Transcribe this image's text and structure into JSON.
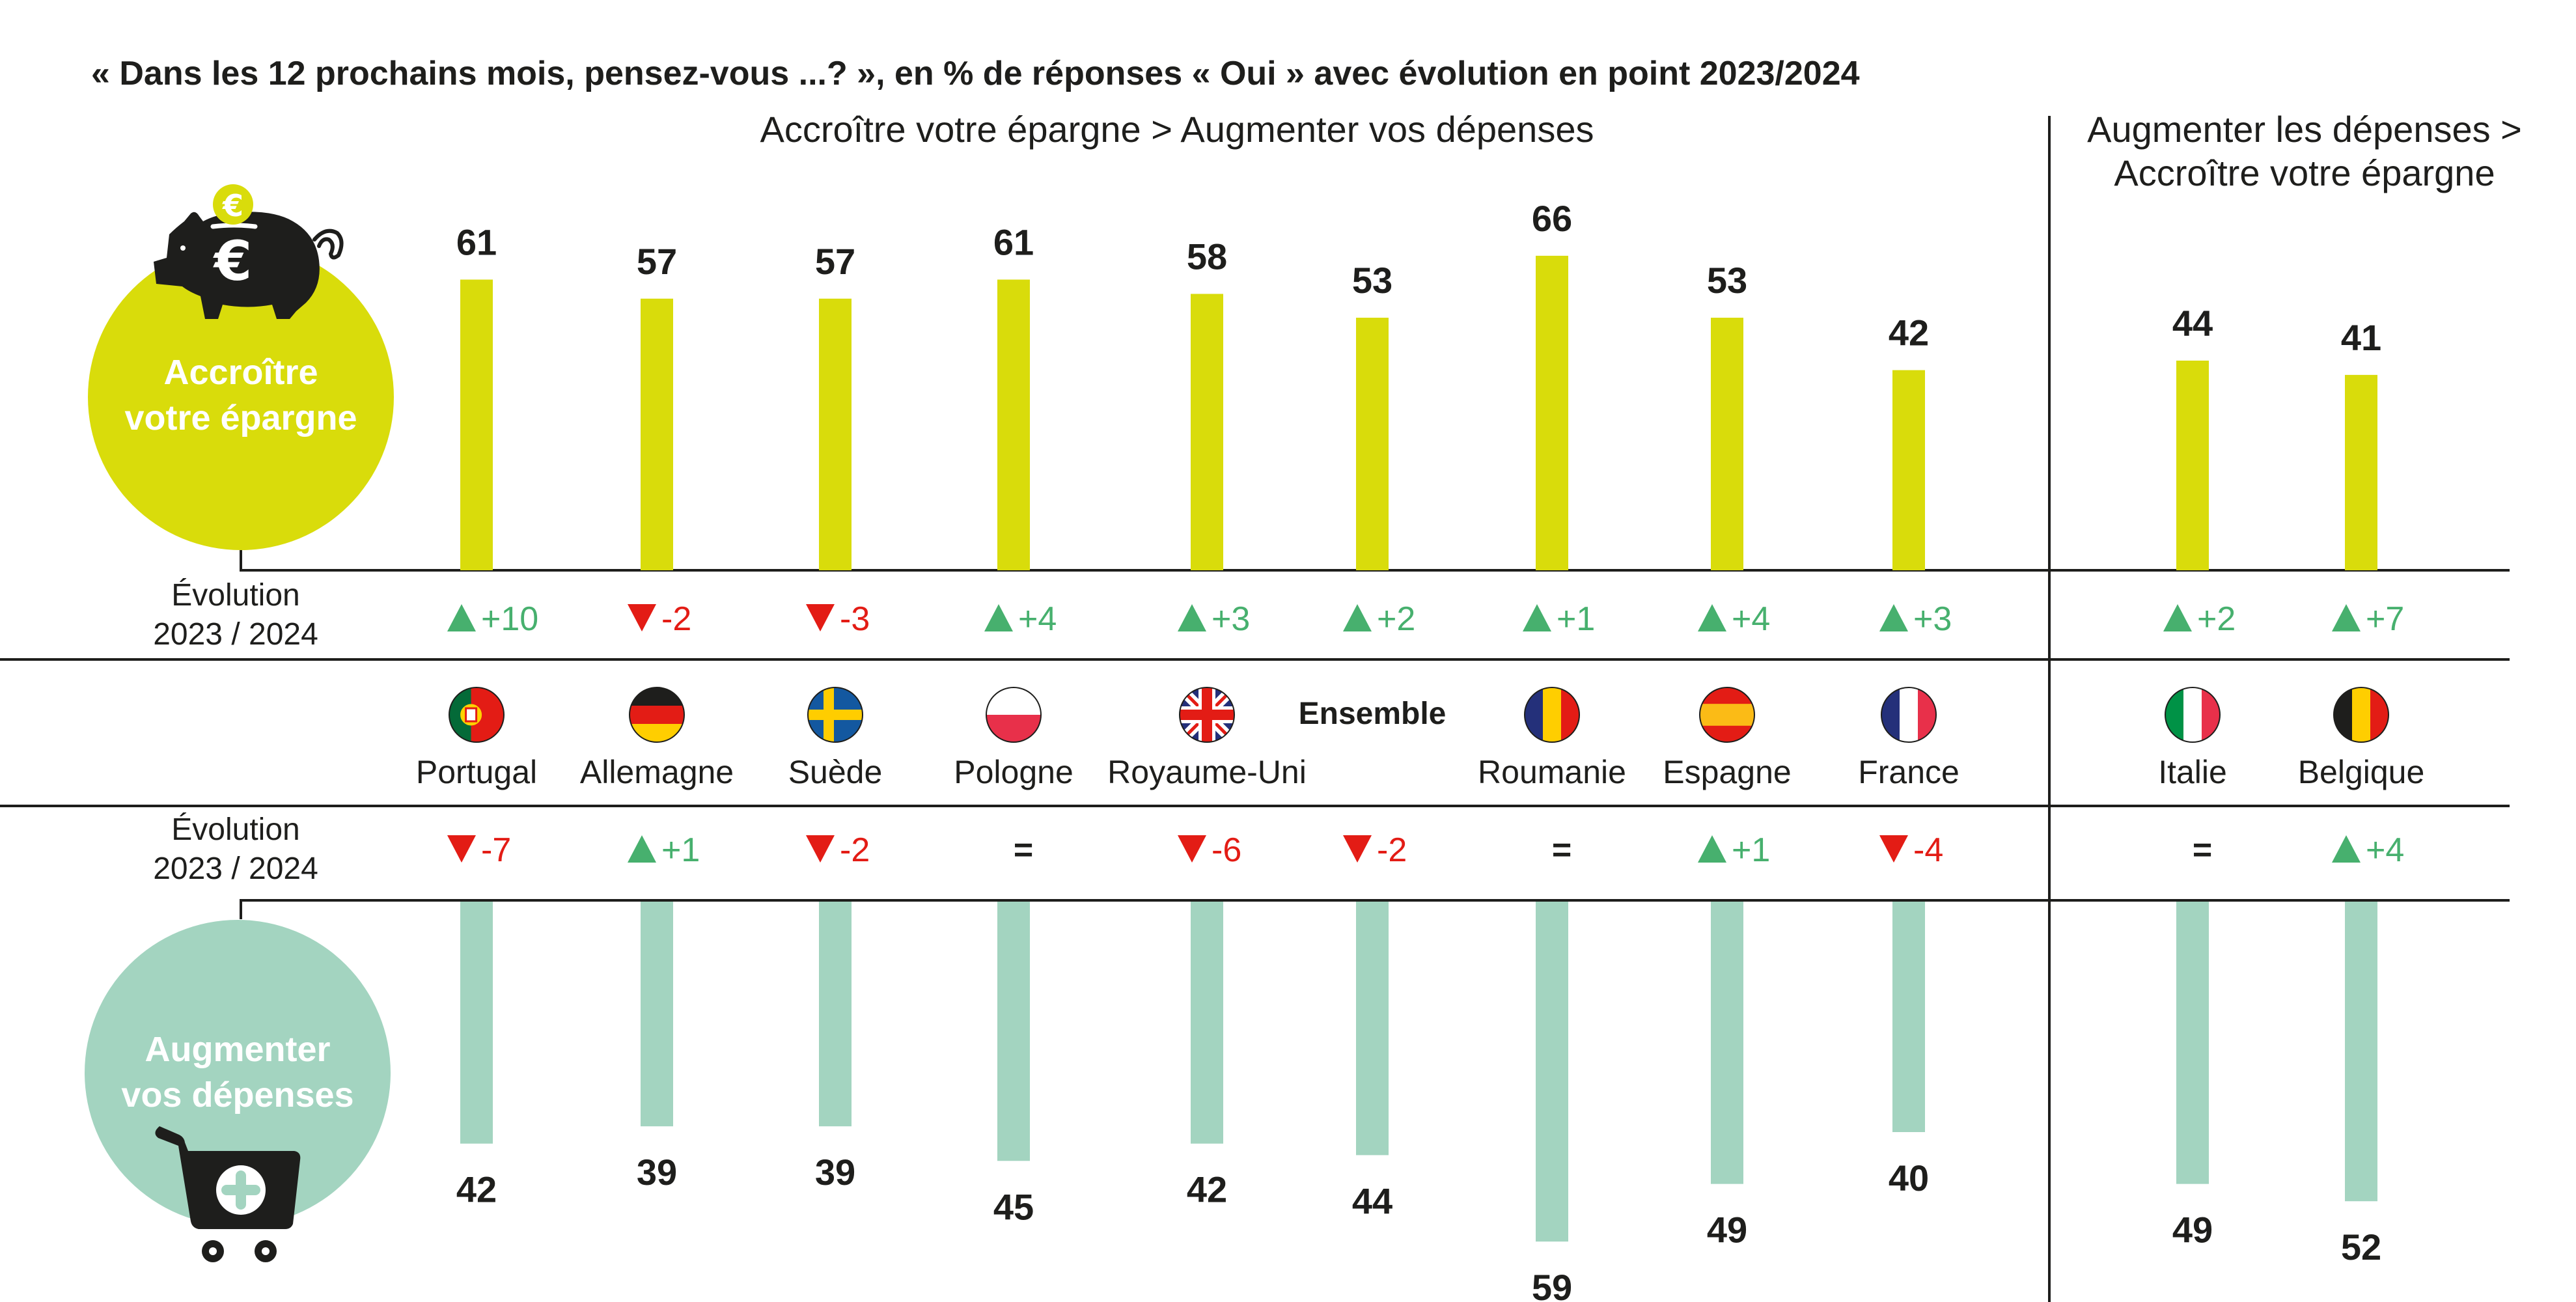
{
  "title": "« Dans les 12 prochains mois, pensez-vous ...? », en % de réponses « Oui » avec évolution en point 2023/2024",
  "group_headers": {
    "left": "Accroître votre épargne > Augmenter vos dépenses",
    "right_line1": "Augmenter les dépenses >",
    "right_line2": "Accroître votre épargne"
  },
  "circles": {
    "savings_line1": "Accroître",
    "savings_line2": "votre épargne",
    "spending_line1": "Augmenter",
    "spending_line2": "vos dépenses"
  },
  "icons": {
    "savings": "piggy-bank-euro-icon",
    "spending": "shopping-cart-plus-icon"
  },
  "evolution_label": {
    "line1": "Évolution",
    "line2": "2023 / 2024"
  },
  "colors": {
    "savings_bar": "#d9dc0b",
    "spending_bar": "#a3d4c0",
    "up": "#47b06e",
    "down": "#e31c15",
    "text": "#1e1e1c"
  },
  "chart_data": {
    "type": "bar",
    "title": "« Dans les 12 prochains mois, pensez-vous ...? », en % de réponses « Oui » avec évolution en point 2023/2024",
    "categories": [
      "Portugal",
      "Allemagne",
      "Suède",
      "Pologne",
      "Royaume-Uni",
      "Ensemble",
      "Roumanie",
      "Espagne",
      "France",
      "Italie",
      "Belgique"
    ],
    "groups": [
      {
        "name": "Accroître votre épargne > Augmenter vos dépenses",
        "categories": [
          "Portugal",
          "Allemagne",
          "Suède",
          "Pologne",
          "Royaume-Uni",
          "Ensemble",
          "Roumanie",
          "Espagne",
          "France"
        ]
      },
      {
        "name": "Augmenter les dépenses > Accroître votre épargne",
        "categories": [
          "Italie",
          "Belgique"
        ]
      }
    ],
    "flags": [
      "portugal",
      "germany",
      "sweden",
      "poland",
      "united-kingdom",
      null,
      "romania",
      "spain",
      "france",
      "italy",
      "belgium"
    ],
    "series": [
      {
        "name": "Accroître votre épargne",
        "values": [
          61,
          57,
          57,
          61,
          58,
          53,
          66,
          53,
          42,
          44,
          41
        ],
        "evolution": [
          "+10",
          "-2",
          "-3",
          "+4",
          "+3",
          "+2",
          "+1",
          "+4",
          "+3",
          "+2",
          "+7"
        ],
        "direction": [
          "up",
          "down",
          "down",
          "up",
          "up",
          "up",
          "up",
          "up",
          "up",
          "up",
          "up"
        ]
      },
      {
        "name": "Augmenter vos dépenses",
        "values": [
          42,
          39,
          39,
          45,
          42,
          44,
          59,
          49,
          40,
          49,
          52
        ],
        "evolution": [
          "-7",
          "+1",
          "-2",
          "=",
          "-6",
          "-2",
          "=",
          "+1",
          "-4",
          "=",
          "+4"
        ],
        "direction": [
          "down",
          "up",
          "down",
          "same",
          "down",
          "down",
          "same",
          "up",
          "down",
          "same",
          "up"
        ]
      }
    ],
    "unit": "%",
    "xlabel": "",
    "ylabel": ""
  }
}
